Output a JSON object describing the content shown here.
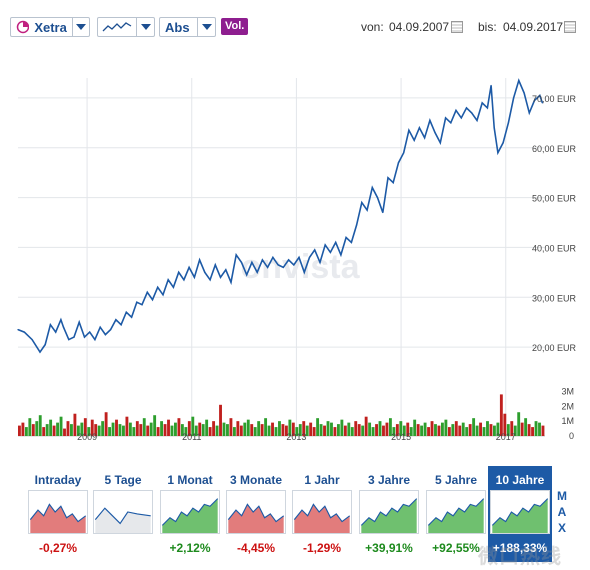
{
  "toolbar": {
    "exchange_label": "Xetra",
    "scale_label": "Abs",
    "volume_label": "Vol.",
    "from_label": "von:",
    "from_date": "04.09.2007",
    "to_label": "bis:",
    "to_date": "04.09.2017",
    "icons": [
      "pie-chart-icon",
      "line-chart-icon",
      "calendar-icon"
    ]
  },
  "watermark": "onvista",
  "corner_watermark": "微口热线",
  "chart_data": {
    "type": "line",
    "title": "",
    "xlabel": "",
    "ylabel": "",
    "currency_unit": "EUR",
    "x_ticks": [
      "2009",
      "2011",
      "2013",
      "2015",
      "2017"
    ],
    "y_ticks": [
      "20,00 EUR",
      "30,00 EUR",
      "40,00 EUR",
      "50,00 EUR",
      "60,00 EUR",
      "70,00 EUR"
    ],
    "y_tick_values": [
      20,
      30,
      40,
      50,
      60,
      70
    ],
    "ylim": [
      15,
      74
    ],
    "xlim": [
      2007.68,
      2017.75
    ],
    "grid": true,
    "series": [
      {
        "color": "#1d5aa6",
        "x": [
          2007.68,
          2007.8,
          2007.95,
          2008.1,
          2008.2,
          2008.3,
          2008.4,
          2008.5,
          2008.55,
          2008.65,
          2008.75,
          2008.85,
          2008.95,
          2009.05,
          2009.15,
          2009.25,
          2009.35,
          2009.45,
          2009.55,
          2009.65,
          2009.75,
          2009.85,
          2009.95,
          2010.05,
          2010.15,
          2010.25,
          2010.35,
          2010.45,
          2010.55,
          2010.65,
          2010.75,
          2010.85,
          2010.95,
          2011.05,
          2011.15,
          2011.25,
          2011.35,
          2011.45,
          2011.55,
          2011.65,
          2011.75,
          2011.85,
          2011.95,
          2012.05,
          2012.15,
          2012.25,
          2012.35,
          2012.45,
          2012.55,
          2012.65,
          2012.75,
          2012.85,
          2012.95,
          2013.05,
          2013.15,
          2013.25,
          2013.35,
          2013.45,
          2013.55,
          2013.65,
          2013.75,
          2013.85,
          2013.95,
          2014.05,
          2014.15,
          2014.25,
          2014.35,
          2014.45,
          2014.55,
          2014.65,
          2014.75,
          2014.85,
          2014.95,
          2015.05,
          2015.15,
          2015.25,
          2015.35,
          2015.45,
          2015.55,
          2015.65,
          2015.75,
          2015.85,
          2015.95,
          2016.05,
          2016.15,
          2016.25,
          2016.35,
          2016.45,
          2016.55,
          2016.65,
          2016.72,
          2016.78,
          2016.85,
          2016.95,
          2017.05,
          2017.15,
          2017.25,
          2017.35,
          2017.45,
          2017.55,
          2017.65,
          2017.7
        ],
        "values": [
          23.5,
          23.0,
          21.5,
          19.0,
          20.5,
          24.5,
          23.0,
          25.5,
          24.0,
          21.5,
          22.0,
          25.0,
          22.0,
          23.0,
          21.5,
          24.0,
          22.5,
          23.5,
          25.5,
          24.5,
          27.0,
          26.0,
          29.0,
          28.5,
          31.0,
          29.5,
          32.0,
          30.5,
          33.5,
          32.0,
          35.0,
          33.5,
          36.0,
          34.0,
          37.5,
          35.0,
          33.5,
          36.5,
          34.0,
          35.5,
          33.0,
          38.5,
          37.0,
          34.5,
          37.0,
          35.0,
          37.5,
          36.0,
          38.0,
          36.5,
          36.0,
          37.5,
          36.5,
          38.0,
          35.0,
          38.0,
          39.5,
          37.0,
          40.5,
          39.0,
          41.0,
          38.5,
          42.0,
          41.0,
          44.5,
          49.0,
          47.5,
          52.0,
          50.0,
          47.0,
          54.0,
          53.0,
          57.0,
          59.0,
          63.5,
          61.5,
          64.0,
          62.0,
          65.5,
          63.0,
          61.0,
          66.0,
          65.0,
          67.5,
          66.0,
          68.0,
          67.0,
          65.5,
          69.0,
          68.0,
          72.5,
          64.0,
          59.0,
          61.0,
          65.0,
          70.0,
          73.5,
          71.0,
          67.0,
          69.5,
          70.5,
          69.0
        ]
      }
    ],
    "volume": {
      "y_ticks": [
        "3M",
        "2M",
        "1M",
        "0"
      ],
      "y_tick_values": [
        3,
        2,
        1,
        0
      ],
      "ylim": [
        0,
        3.5
      ],
      "colors": [
        "#2d9e2d",
        "#c0201e"
      ],
      "values": [
        0.7,
        0.9,
        0.6,
        1.2,
        0.8,
        1.0,
        1.4,
        0.6,
        0.8,
        1.1,
        0.7,
        0.9,
        1.3,
        0.5,
        1.0,
        0.8,
        1.5,
        0.7,
        0.9,
        1.2,
        0.6,
        1.1,
        0.8,
        0.7,
        1.0,
        1.6,
        0.6,
        0.9,
        1.1,
        0.8,
        0.7,
        1.3,
        0.9,
        0.6,
        1.0,
        0.8,
        1.2,
        0.7,
        0.9,
        1.4,
        0.6,
        1.0,
        0.8,
        1.1,
        0.7,
        0.9,
        1.2,
        0.8,
        0.6,
        1.0,
        1.3,
        0.7,
        0.9,
        0.8,
        1.1,
        0.6,
        1.0,
        0.7,
        2.1,
        0.9,
        0.8,
        1.2,
        0.6,
        1.0,
        0.7,
        0.9,
        1.1,
        0.8,
        0.6,
        1.0,
        0.8,
        1.2,
        0.7,
        0.9,
        0.6,
        1.0,
        0.8,
        0.7,
        1.1,
        0.9,
        0.6,
        0.8,
        1.0,
        0.7,
        0.9,
        0.6,
        1.2,
        0.8,
        0.7,
        1.0,
        0.9,
        0.6,
        0.8,
        1.1,
        0.7,
        0.9,
        0.6,
        1.0,
        0.8,
        0.7,
        1.3,
        0.9,
        0.6,
        0.8,
        1.0,
        0.7,
        0.9,
        1.2,
        0.6,
        0.8,
        1.0,
        0.7,
        0.9,
        0.6,
        1.1,
        0.8,
        0.7,
        0.9,
        0.6,
        1.0,
        0.8,
        0.7,
        0.9,
        1.1,
        0.6,
        0.8,
        1.0,
        0.7,
        0.9,
        0.6,
        0.8,
        1.2,
        0.7,
        0.9,
        0.6,
        1.0,
        0.8,
        0.7,
        0.9,
        2.8,
        1.5,
        0.8,
        1.0,
        0.7,
        1.6,
        0.9,
        1.2,
        0.8,
        0.6,
        1.0,
        0.9,
        0.7
      ]
    }
  },
  "periods": [
    {
      "label": "Intraday",
      "change": "-0,27%",
      "trend": "neg"
    },
    {
      "label": "5 Tage",
      "change": "",
      "trend": "flat"
    },
    {
      "label": "1 Monat",
      "change": "+2,12%",
      "trend": "pos"
    },
    {
      "label": "3 Monate",
      "change": "-4,45%",
      "trend": "neg"
    },
    {
      "label": "1 Jahr",
      "change": "-1,29%",
      "trend": "neg"
    },
    {
      "label": "3 Jahre",
      "change": "+39,91%",
      "trend": "pos"
    },
    {
      "label": "5 Jahre",
      "change": "+92,55%",
      "trend": "pos"
    },
    {
      "label": "10 Jahre",
      "change": "+188,33%",
      "trend": "pos",
      "active": true
    }
  ],
  "max_label": [
    "M",
    "A",
    "X"
  ]
}
